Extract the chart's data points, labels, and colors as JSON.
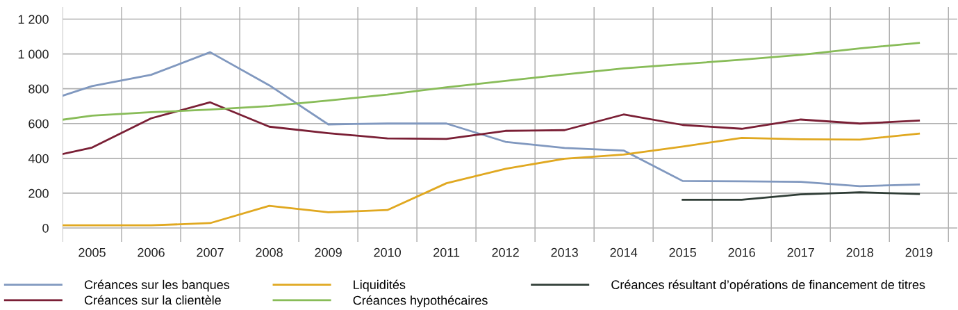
{
  "chart_data": {
    "type": "line",
    "x": [
      2004.5,
      2005,
      2006,
      2007,
      2008,
      2009,
      2010,
      2011,
      2012,
      2013,
      2014,
      2015,
      2016,
      2017,
      2018,
      2019
    ],
    "series": [
      {
        "name": "Créances sur les banques",
        "color": "#8098bf",
        "values": [
          760,
          815,
          880,
          1010,
          820,
          595,
          600,
          600,
          495,
          460,
          445,
          270,
          268,
          265,
          240,
          250
        ]
      },
      {
        "name": "Créances sur la clientèle",
        "color": "#7a1f35",
        "values": [
          425,
          462,
          630,
          722,
          582,
          545,
          515,
          512,
          558,
          562,
          652,
          592,
          570,
          623,
          600,
          617
        ]
      },
      {
        "name": "Liquidités",
        "color": "#e0a820",
        "values": [
          15,
          15,
          15,
          28,
          127,
          90,
          103,
          257,
          340,
          398,
          422,
          468,
          518,
          510,
          508,
          542
        ]
      },
      {
        "name": "Créances hypothécaires",
        "color": "#88bc58",
        "values": [
          622,
          645,
          665,
          680,
          700,
          732,
          766,
          808,
          845,
          882,
          917,
          942,
          967,
          995,
          1032,
          1063
        ]
      },
      {
        "name": "Créances résultant d’opérations de financement de titres",
        "color": "#2f3d36",
        "x": [
          2015,
          2016,
          2017,
          2018,
          2019
        ],
        "values": [
          162,
          162,
          193,
          205,
          195
        ]
      }
    ],
    "xlim": [
      2004.5,
      2019.65
    ],
    "xticks": [
      {
        "value": 2004.5,
        "label": null
      },
      {
        "value": 2005,
        "label": "2005"
      },
      {
        "value": 2005.5,
        "label": null
      },
      {
        "value": 2006,
        "label": "2006"
      },
      {
        "value": 2006.5,
        "label": null
      },
      {
        "value": 2007,
        "label": "2007"
      },
      {
        "value": 2007.5,
        "label": null
      },
      {
        "value": 2008,
        "label": "2008"
      },
      {
        "value": 2008.5,
        "label": null
      },
      {
        "value": 2009,
        "label": "2009"
      },
      {
        "value": 2009.5,
        "label": null
      },
      {
        "value": 2010,
        "label": "2010"
      },
      {
        "value": 2010.5,
        "label": null
      },
      {
        "value": 2011,
        "label": "2011"
      },
      {
        "value": 2011.5,
        "label": null
      },
      {
        "value": 2012,
        "label": "2012"
      },
      {
        "value": 2012.5,
        "label": null
      },
      {
        "value": 2013,
        "label": "2013"
      },
      {
        "value": 2013.5,
        "label": null
      },
      {
        "value": 2014,
        "label": "2014"
      },
      {
        "value": 2014.5,
        "label": null
      },
      {
        "value": 2015,
        "label": "2015"
      },
      {
        "value": 2015.5,
        "label": null
      },
      {
        "value": 2016,
        "label": "2016"
      },
      {
        "value": 2016.5,
        "label": null
      },
      {
        "value": 2017,
        "label": "2017"
      },
      {
        "value": 2017.5,
        "label": null
      },
      {
        "value": 2018,
        "label": "2018"
      },
      {
        "value": 2018.5,
        "label": null
      },
      {
        "value": 2019,
        "label": "2019"
      },
      {
        "value": 2019.5,
        "label": null
      }
    ],
    "ylim": [
      -80,
      1270
    ],
    "yticks": [
      0,
      200,
      400,
      600,
      800,
      {
        "value": 1000,
        "label": "1 000"
      },
      {
        "value": 1200,
        "label": "1 200"
      }
    ],
    "grid": true,
    "legend": "bottom",
    "marker": "none",
    "line_style": "solid"
  }
}
